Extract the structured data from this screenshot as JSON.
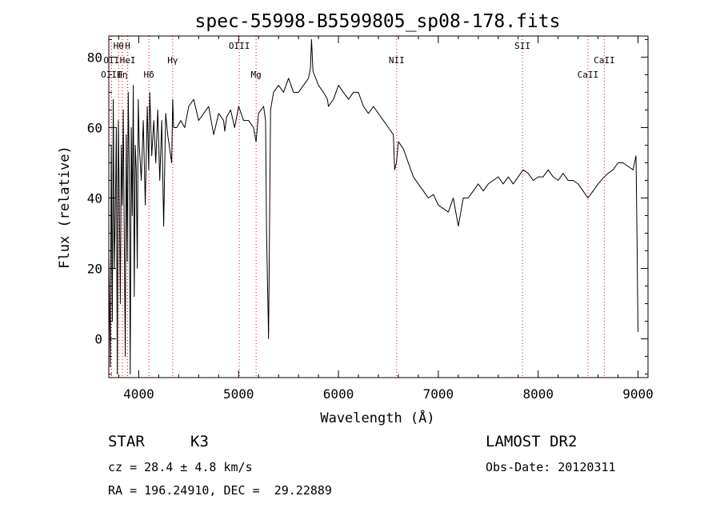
{
  "chart_data": {
    "type": "line",
    "title": "spec-55998-B5599805_sp08-178.fits",
    "xlabel": "Wavelength (Å)",
    "ylabel": "Flux (relative)",
    "xlim": [
      3700,
      9100
    ],
    "ylim": [
      -11,
      86
    ],
    "x_ticks": [
      4000,
      5000,
      6000,
      7000,
      8000,
      9000
    ],
    "y_ticks": [
      0,
      20,
      40,
      60,
      80
    ],
    "x_tick_labels": [
      "4000",
      "5000",
      "6000",
      "7000",
      "8000",
      "9000"
    ],
    "y_tick_labels": [
      "0",
      "20",
      "40",
      "60",
      "80"
    ],
    "grid": false,
    "line_color": "#000000",
    "marker_color": "#ff0000",
    "series": [
      {
        "x": [
          3700,
          3715,
          3725,
          3735,
          3745,
          3755,
          3765,
          3775,
          3785,
          3795,
          3805,
          3815,
          3825,
          3835,
          3845,
          3855,
          3865,
          3875,
          3885,
          3895,
          3905,
          3915,
          3925,
          3935,
          3945,
          3955,
          3965,
          3975,
          3985,
          3995,
          4005,
          4025,
          4045,
          4065,
          4085,
          4100,
          4110,
          4130,
          4150,
          4170,
          4190,
          4210,
          4230,
          4250,
          4270,
          4290,
          4310,
          4330,
          4340,
          4350,
          4380,
          4420,
          4460,
          4500,
          4550,
          4600,
          4650,
          4700,
          4750,
          4800,
          4850,
          4861,
          4880,
          4920,
          4960,
          5000,
          5050,
          5100,
          5150,
          5175,
          5200,
          5250,
          5270,
          5280,
          5300,
          5320,
          5350,
          5400,
          5450,
          5500,
          5550,
          5600,
          5650,
          5700,
          5720,
          5730,
          5745,
          5800,
          5850,
          5890,
          5900,
          5950,
          6000,
          6050,
          6100,
          6150,
          6200,
          6250,
          6300,
          6350,
          6400,
          6450,
          6500,
          6550,
          6563,
          6580,
          6600,
          6650,
          6700,
          6750,
          6800,
          6850,
          6900,
          6950,
          7000,
          7050,
          7100,
          7150,
          7200,
          7250,
          7300,
          7350,
          7400,
          7450,
          7500,
          7550,
          7600,
          7650,
          7700,
          7750,
          7800,
          7850,
          7900,
          7950,
          8000,
          8050,
          8100,
          8150,
          8200,
          8250,
          8300,
          8350,
          8400,
          8450,
          8498,
          8550,
          8600,
          8662,
          8700,
          8750,
          8800,
          8850,
          8900,
          8950,
          8980,
          8990,
          9000
        ],
        "y": [
          25,
          -8,
          55,
          5,
          68,
          20,
          35,
          60,
          -10,
          62,
          40,
          10,
          55,
          38,
          65,
          30,
          -5,
          58,
          22,
          70,
          48,
          -10,
          60,
          35,
          72,
          12,
          55,
          48,
          20,
          68,
          55,
          45,
          62,
          38,
          66,
          48,
          70,
          52,
          62,
          50,
          65,
          45,
          62,
          32,
          64,
          58,
          54,
          50,
          68,
          60,
          60,
          62,
          60,
          66,
          68,
          62,
          64,
          66,
          58,
          64,
          62,
          59,
          63,
          65,
          60,
          66,
          62,
          62,
          60,
          56,
          64,
          66,
          62,
          30,
          0,
          65,
          70,
          72,
          70,
          74,
          70,
          70,
          72,
          74,
          77,
          85,
          76,
          72,
          70,
          68,
          66,
          68,
          72,
          70,
          68,
          70,
          70,
          66,
          64,
          66,
          64,
          62,
          60,
          58,
          48,
          50,
          56,
          54,
          50,
          46,
          44,
          42,
          40,
          41,
          38,
          37,
          36,
          40,
          32,
          40,
          40,
          42,
          44,
          42,
          44,
          45,
          46,
          44,
          46,
          44,
          46,
          48,
          47,
          45,
          46,
          46,
          48,
          46,
          45,
          47,
          45,
          45,
          44,
          42,
          40,
          42,
          44,
          46,
          47,
          48,
          50,
          50,
          49,
          48,
          52,
          28,
          2
        ]
      }
    ],
    "line_markers": [
      {
        "label": "Hθ",
        "x": 3798,
        "row": 1
      },
      {
        "label": "H",
        "x": 3889,
        "row": 1
      },
      {
        "label": "OII",
        "x": 3727,
        "row": 2
      },
      {
        "label": "HeI",
        "x": 3889,
        "row": 2
      },
      {
        "label": "Hγ",
        "x": 4340,
        "row": 2
      },
      {
        "label": "OIII",
        "x": 3727,
        "row": 3
      },
      {
        "label": "Hη",
        "x": 3835,
        "row": 3
      },
      {
        "label": "Hδ",
        "x": 4102,
        "row": 3
      },
      {
        "label": "OIII",
        "x": 5007,
        "row": 1
      },
      {
        "label": "Mg",
        "x": 5175,
        "row": 3
      },
      {
        "label": "NII",
        "x": 6583,
        "row": 2
      },
      {
        "label": "SII",
        "x": 7843,
        "row": 1
      },
      {
        "label": "CaII",
        "x": 8662,
        "row": 2
      },
      {
        "label": "CaII",
        "x": 8498,
        "row": 3
      }
    ]
  },
  "info": {
    "class_label": "STAR",
    "subclass": "K3",
    "survey": "LAMOST DR2",
    "cz": "cz = 28.4 ± 4.8 km/s",
    "obs_date": "Obs-Date: 20120311",
    "coords": "RA = 196.24910, DEC =  29.22889"
  }
}
